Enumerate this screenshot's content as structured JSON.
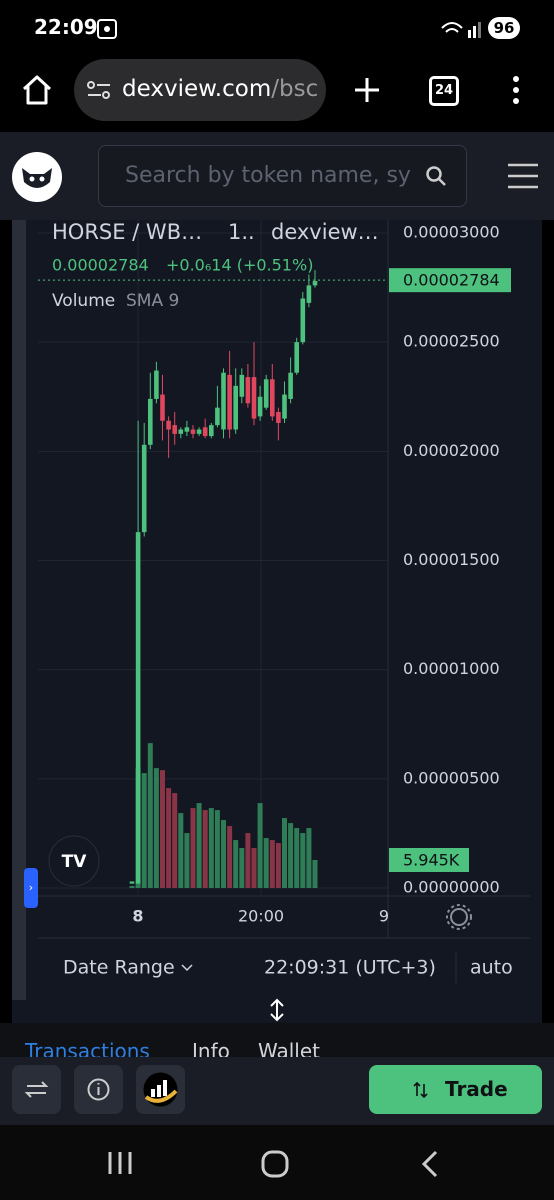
{
  "status_bar": {
    "time": "22:09",
    "battery": "96"
  },
  "browser": {
    "url_host": "dexview.com",
    "url_path": "/bsc",
    "tab_count": "24"
  },
  "site": {
    "search_placeholder": "Search by token name, sy"
  },
  "chart_data": {
    "type": "candlestick",
    "pair": "HORSE / WB…",
    "interval": "1..",
    "source": "dexview…",
    "last_price": "0.00002784",
    "change": "+0.0₆14 (+0.51%)",
    "volume_label": "Volume",
    "volume_indicator": "SMA 9",
    "up_color": "#4cc27e",
    "down_color": "#e0475f",
    "volume_up_color": "#2f7d56",
    "volume_down_color": "#8a3447",
    "open": [
      2e-07,
      2e-07,
      1.63e-05,
      2.03e-05,
      2.24e-05,
      2.26e-05,
      2.14e-05,
      2.12e-05,
      2.08e-05,
      2.09e-05,
      2.1e-05,
      2.08e-05,
      2.11e-05,
      2.07e-05,
      2.12e-05,
      2.1e-05,
      2.35e-05,
      2.1e-05,
      2.25e-05,
      2.34e-05,
      2.34e-05,
      2.16e-05,
      2.2e-05,
      2.33e-05,
      2.18e-05,
      2.15e-05,
      2.24e-05,
      2.36e-05,
      2.5e-05,
      2.68e-05,
      2.76e-05
    ],
    "high": [
      3e-07,
      2.14e-05,
      2.13e-05,
      2.36e-05,
      2.41e-05,
      2.35e-05,
      2.16e-05,
      2.18e-05,
      2.11e-05,
      2.14e-05,
      2.12e-05,
      2.11e-05,
      2.15e-05,
      2.13e-05,
      2.3e-05,
      2.38e-05,
      2.46e-05,
      2.38e-05,
      2.38e-05,
      2.4e-05,
      2.5e-05,
      2.3e-05,
      2.35e-05,
      2.4e-05,
      2.2e-05,
      2.32e-05,
      2.43e-05,
      2.52e-05,
      2.73e-05,
      2.81e-05,
      2.83e-05
    ],
    "low": [
      2e-07,
      2e-07,
      1.61e-05,
      2.01e-05,
      2.22e-05,
      2.05e-05,
      1.97e-05,
      2.03e-05,
      2.06e-05,
      2.07e-05,
      2.06e-05,
      2.07e-05,
      2.06e-05,
      2.06e-05,
      2.11e-05,
      2.06e-05,
      2.06e-05,
      2.08e-05,
      2.22e-05,
      2.2e-05,
      2.12e-05,
      2.14e-05,
      2.19e-05,
      2.14e-05,
      2.05e-05,
      2.13e-05,
      2.22e-05,
      2.35e-05,
      2.49e-05,
      2.66e-05,
      2.75e-05
    ],
    "close": [
      3e-07,
      1.63e-05,
      2.03e-05,
      2.24e-05,
      2.37e-05,
      2.14e-05,
      2.1e-05,
      2.08e-05,
      2.1e-05,
      2.11e-05,
      2.08e-05,
      2.1e-05,
      2.07e-05,
      2.12e-05,
      2.2e-05,
      2.36e-05,
      2.1e-05,
      2.3e-05,
      2.35e-05,
      2.22e-05,
      2.15e-05,
      2.25e-05,
      2.33e-05,
      2.16e-05,
      2.13e-05,
      2.26e-05,
      2.36e-05,
      2.5e-05,
      2.7e-05,
      2.76e-05,
      2.78e-05
    ],
    "volume": [
      424,
      25440,
      24380,
      30740,
      25440,
      25016,
      21200,
      20140,
      15900,
      11660,
      16960,
      18020,
      16536,
      16960,
      16536,
      14416,
      13144,
      10176,
      8480,
      11660,
      8480,
      18020,
      10600,
      10176,
      9540,
      14840,
      13780,
      12720,
      11660,
      12720,
      5945
    ],
    "ylim": [
      0,
      3e-05
    ],
    "yticks": [
      {
        "value": 3e-05,
        "label": "0.00003000"
      },
      {
        "value": 2.5e-05,
        "label": "0.00002500"
      },
      {
        "value": 2e-05,
        "label": "0.00002000"
      },
      {
        "value": 1.5e-05,
        "label": "0.00001500"
      },
      {
        "value": 1e-05,
        "label": "0.00001000"
      },
      {
        "value": 5e-06,
        "label": "0.00000500"
      },
      {
        "value": 0,
        "label": "0.00000000"
      }
    ],
    "y2lim": [
      0,
      139000
    ],
    "current_price": {
      "value": 2.784e-05,
      "label": "0.00002784"
    },
    "current_volume": {
      "value": 5945,
      "label": "5.945K"
    },
    "xtick_labels": [
      "8",
      "20:00",
      "9"
    ],
    "grid": true
  },
  "chart_footer": {
    "date_range": "Date Range",
    "time": "22:09:31 (UTC+3)",
    "scale": "auto"
  },
  "tabs": [
    "Transactions",
    "Info",
    "Wallet"
  ],
  "toolbar": {
    "trade": "Trade"
  }
}
